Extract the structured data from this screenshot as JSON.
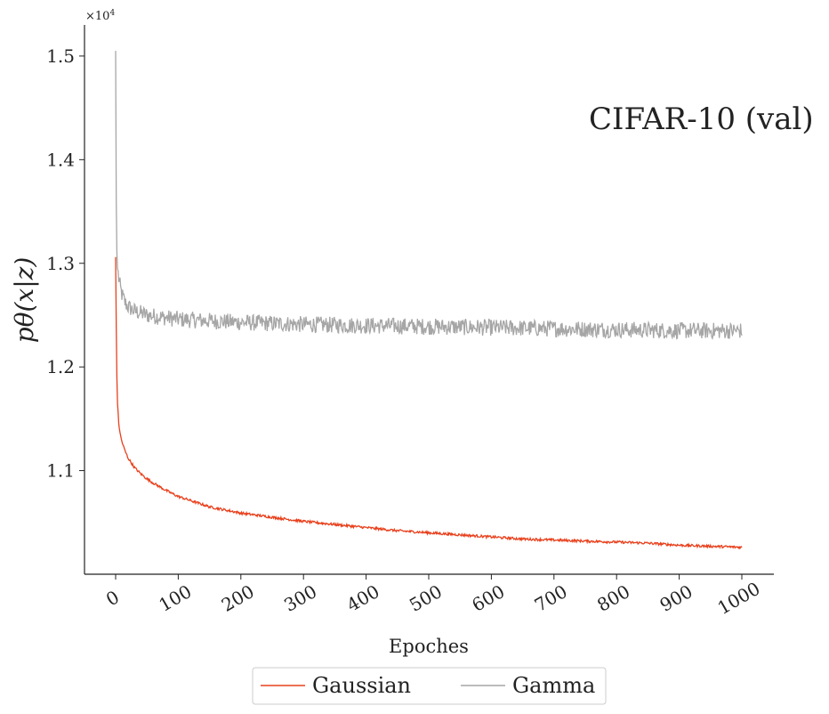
{
  "chart_data": {
    "type": "line",
    "annotation": "CIFAR-10 (val)",
    "xlabel": "Epoches",
    "ylabel": "pθ(x|z)",
    "y_multiplier_label": "×10",
    "y_multiplier_exponent": "4",
    "xlim": [
      -50,
      1050
    ],
    "ylim": [
      1.0,
      1.53
    ],
    "x_ticks": [
      0,
      100,
      200,
      300,
      400,
      500,
      600,
      700,
      800,
      900,
      1000
    ],
    "y_ticks": [
      1.1,
      1.2,
      1.3,
      1.4,
      1.5
    ],
    "y_tick_labels": [
      "1.1",
      "1.2",
      "1.3",
      "1.4",
      "1.5"
    ],
    "grid": false,
    "legend_position": "bottom-center",
    "series": [
      {
        "name": "Gaussian",
        "color": "#e8401c",
        "x": [
          0,
          1,
          2,
          3,
          5,
          8,
          10,
          15,
          20,
          30,
          40,
          50,
          60,
          80,
          100,
          150,
          200,
          250,
          300,
          350,
          400,
          450,
          500,
          550,
          600,
          650,
          700,
          750,
          800,
          850,
          900,
          950,
          1000
        ],
        "values": [
          1.306,
          1.24,
          1.19,
          1.165,
          1.145,
          1.133,
          1.128,
          1.119,
          1.112,
          1.103,
          1.097,
          1.092,
          1.088,
          1.081,
          1.075,
          1.065,
          1.059,
          1.055,
          1.051,
          1.048,
          1.045,
          1.042,
          1.04,
          1.038,
          1.036,
          1.034,
          1.033,
          1.032,
          1.031,
          1.03,
          1.028,
          1.027,
          1.026
        ],
        "noise": 0.0012
      },
      {
        "name": "Gamma",
        "color": "#a6a6a6",
        "x": [
          0,
          1,
          2,
          3,
          5,
          8,
          10,
          15,
          20,
          30,
          50,
          100,
          200,
          300,
          400,
          500,
          600,
          700,
          800,
          900,
          1000
        ],
        "values": [
          1.505,
          1.36,
          1.31,
          1.295,
          1.285,
          1.275,
          1.27,
          1.262,
          1.258,
          1.254,
          1.25,
          1.246,
          1.243,
          1.241,
          1.24,
          1.239,
          1.238,
          1.237,
          1.236,
          1.235,
          1.235
        ],
        "noise": 0.008
      }
    ]
  }
}
